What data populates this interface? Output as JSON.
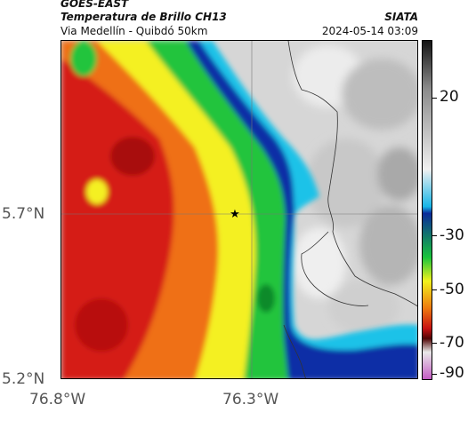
{
  "header": {
    "title_line1": "GOES-EAST",
    "title_line2": "Temperatura de Brillo CH13",
    "subtitle": "Via Medellín - Quibdó 50km",
    "credit": "SIATA",
    "datetime": "2024-05-14 03:09"
  },
  "axes": {
    "y_labels": [
      "5.7°N",
      "5.2°N"
    ],
    "x_labels": [
      "76.8°W",
      "76.3°W"
    ]
  },
  "colorbar": {
    "labels": [
      "20",
      "-30",
      "-50",
      "-70",
      "-90"
    ],
    "gradient_stops": [
      "#141414",
      "#8a8a8a",
      "#f0f0f0",
      "#17b6e8",
      "#0a2a9a",
      "#19c43c",
      "#f2f21e",
      "#ee7a10",
      "#c81212",
      "#500404",
      "#e9e9e9",
      "#c45cc4"
    ]
  },
  "map": {
    "marker": "star-icon",
    "colors": {
      "red": "#d51a16",
      "orange": "#ef6f12",
      "yellow": "#f4f020",
      "green": "#22c43c",
      "cyan": "#1cc2e8",
      "blue": "#0d2ea6",
      "clear": "#d9d9d9"
    }
  }
}
